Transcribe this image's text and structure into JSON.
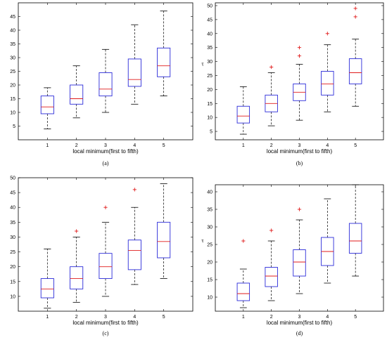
{
  "chart_data": [
    {
      "type": "box",
      "panel_label": "(a)",
      "xlabel": "local minimum(first to fifth)",
      "ylabel": "",
      "categories": [
        "1",
        "2",
        "3",
        "4",
        "5"
      ],
      "ylim": [
        0,
        50
      ],
      "yticks": [
        5,
        10,
        15,
        20,
        25,
        30,
        35,
        40,
        45
      ],
      "boxes": [
        {
          "whislo": 4,
          "q1": 9.5,
          "med": 12,
          "q3": 16,
          "whishi": 19,
          "fliers": []
        },
        {
          "whislo": 8,
          "q1": 13,
          "med": 15,
          "q3": 20,
          "whishi": 27,
          "fliers": []
        },
        {
          "whislo": 10,
          "q1": 16,
          "med": 18.5,
          "q3": 24.5,
          "whishi": 33,
          "fliers": []
        },
        {
          "whislo": 13,
          "q1": 19.5,
          "med": 22,
          "q3": 29.5,
          "whishi": 42,
          "fliers": []
        },
        {
          "whislo": 16,
          "q1": 23,
          "med": 27,
          "q3": 33.5,
          "whishi": 47,
          "fliers": []
        }
      ]
    },
    {
      "type": "box",
      "panel_label": "(b)",
      "xlabel": "local minimum(first to fifth)",
      "ylabel": "τ",
      "categories": [
        "1",
        "2",
        "3",
        "4",
        "5"
      ],
      "ylim": [
        2,
        51
      ],
      "yticks": [
        5,
        10,
        15,
        20,
        25,
        30,
        35,
        40,
        45,
        50
      ],
      "boxes": [
        {
          "whislo": 4,
          "q1": 8,
          "med": 10.5,
          "q3": 14,
          "whishi": 21,
          "fliers": []
        },
        {
          "whislo": 7,
          "q1": 12,
          "med": 15,
          "q3": 18,
          "whishi": 26,
          "fliers": [
            28
          ]
        },
        {
          "whislo": 9,
          "q1": 16,
          "med": 19,
          "q3": 22,
          "whishi": 29,
          "fliers": [
            32,
            35
          ]
        },
        {
          "whislo": 12,
          "q1": 18,
          "med": 22,
          "q3": 26.5,
          "whishi": 36,
          "fliers": [
            40
          ]
        },
        {
          "whislo": 14,
          "q1": 22,
          "med": 26,
          "q3": 31,
          "whishi": 38,
          "fliers": [
            46,
            49
          ]
        }
      ]
    },
    {
      "type": "box",
      "panel_label": "(c)",
      "xlabel": "local minimum(first to fifth)",
      "ylabel": "",
      "categories": [
        "1",
        "2",
        "3",
        "4",
        "5"
      ],
      "ylim": [
        5,
        50
      ],
      "yticks": [
        10,
        15,
        20,
        25,
        30,
        35,
        40,
        45,
        50
      ],
      "boxes": [
        {
          "whislo": 6,
          "q1": 9.5,
          "med": 12.5,
          "q3": 16,
          "whishi": 26,
          "fliers": []
        },
        {
          "whislo": 8,
          "q1": 12.5,
          "med": 16,
          "q3": 20,
          "whishi": 30,
          "fliers": [
            32
          ]
        },
        {
          "whislo": 10,
          "q1": 16,
          "med": 20,
          "q3": 24.5,
          "whishi": 35,
          "fliers": [
            40
          ]
        },
        {
          "whislo": 14,
          "q1": 19,
          "med": 25.5,
          "q3": 29,
          "whishi": 40,
          "fliers": [
            46
          ]
        },
        {
          "whislo": 16,
          "q1": 23,
          "med": 28.5,
          "q3": 35,
          "whishi": 48,
          "fliers": []
        }
      ]
    },
    {
      "type": "box",
      "panel_label": "(d)",
      "xlabel": "local minimum(first to fifth)",
      "ylabel": "τ",
      "categories": [
        "1",
        "2",
        "3",
        "4",
        "5"
      ],
      "ylim": [
        6,
        42
      ],
      "yticks": [
        10,
        15,
        20,
        25,
        30,
        35,
        40
      ],
      "boxes": [
        {
          "whislo": 7,
          "q1": 9,
          "med": 11,
          "q3": 14,
          "whishi": 18,
          "fliers": [
            26
          ]
        },
        {
          "whislo": 9,
          "q1": 13,
          "med": 16,
          "q3": 18.5,
          "whishi": 26,
          "fliers": [
            29
          ]
        },
        {
          "whislo": 11,
          "q1": 16,
          "med": 20,
          "q3": 23.5,
          "whishi": 32,
          "fliers": [
            35
          ]
        },
        {
          "whislo": 14,
          "q1": 19,
          "med": 23,
          "q3": 27,
          "whishi": 38,
          "fliers": []
        },
        {
          "whislo": 16,
          "q1": 22.5,
          "med": 26,
          "q3": 31,
          "whishi": 42,
          "fliers": []
        }
      ]
    }
  ]
}
